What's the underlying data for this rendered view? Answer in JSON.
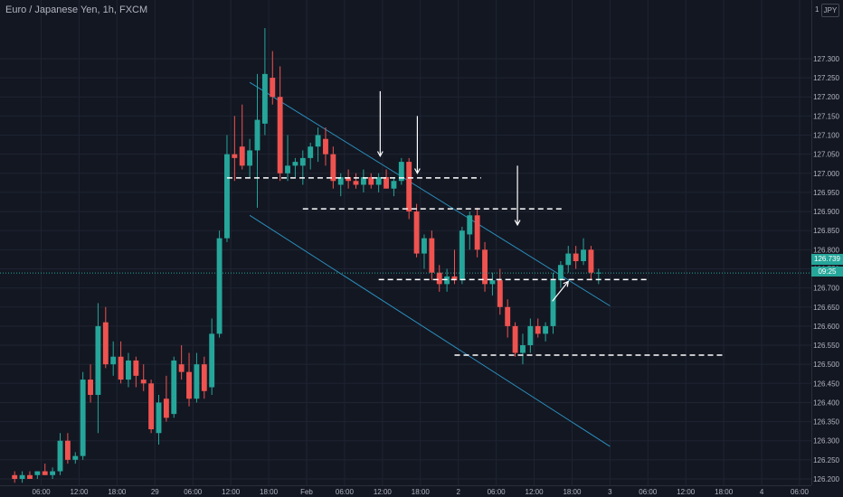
{
  "header": {
    "symbol_title": "Euro / Japanese Yen, 1h, FXCM",
    "currency_badge": "JPY",
    "axis_top_label": "1"
  },
  "price_axis": {
    "last_price": "126.739",
    "countdown": "09:25"
  },
  "colors": {
    "background": "#131722",
    "bull": "#26a69a",
    "bear": "#ef5350",
    "grid": "#1f2433",
    "text": "#b2b5be",
    "channel": "#2a8fbd",
    "annotation": "#ffffff",
    "last_price": "#26a69a"
  },
  "chart_data": {
    "type": "candlestick",
    "ylim": [
      126.2,
      127.43
    ],
    "xlim": [
      0,
      104
    ],
    "grid": true,
    "y_ticks": [
      "127.300",
      "127.250",
      "127.200",
      "127.150",
      "127.100",
      "127.050",
      "127.000",
      "126.950",
      "126.900",
      "126.850",
      "126.800",
      "126.750",
      "126.700",
      "126.650",
      "126.600",
      "126.550",
      "126.500",
      "126.450",
      "126.400",
      "126.350",
      "126.300",
      "126.250",
      "126.200"
    ],
    "x_ticks": [
      {
        "label": "06:00",
        "x": 4
      },
      {
        "label": "12:00",
        "x": 9
      },
      {
        "label": "18:00",
        "x": 14
      },
      {
        "label": "29",
        "x": 19
      },
      {
        "label": "06:00",
        "x": 24
      },
      {
        "label": "12:00",
        "x": 29
      },
      {
        "label": "18:00",
        "x": 34
      },
      {
        "label": "Feb",
        "x": 39
      },
      {
        "label": "06:00",
        "x": 44
      },
      {
        "label": "12:00",
        "x": 49
      },
      {
        "label": "18:00",
        "x": 54
      },
      {
        "label": "2",
        "x": 59
      },
      {
        "label": "06:00",
        "x": 64
      },
      {
        "label": "12:00",
        "x": 69
      },
      {
        "label": "18:00",
        "x": 74
      },
      {
        "label": "3",
        "x": 79
      },
      {
        "label": "06:00",
        "x": 84
      },
      {
        "label": "12:00",
        "x": 89
      },
      {
        "label": "18:00",
        "x": 94
      },
      {
        "label": "4",
        "x": 99
      },
      {
        "label": "06:00",
        "x": 104
      }
    ],
    "candles": [
      [
        126.21,
        126.22,
        126.19,
        126.2
      ],
      [
        126.2,
        126.22,
        126.19,
        126.21
      ],
      [
        126.21,
        126.22,
        126.2,
        126.2
      ],
      [
        126.21,
        126.22,
        126.2,
        126.22
      ],
      [
        126.22,
        126.24,
        126.21,
        126.21
      ],
      [
        126.21,
        126.23,
        126.2,
        126.22
      ],
      [
        126.22,
        126.32,
        126.21,
        126.3
      ],
      [
        126.3,
        126.32,
        126.24,
        126.25
      ],
      [
        126.25,
        126.27,
        126.24,
        126.26
      ],
      [
        126.26,
        126.48,
        126.25,
        126.46
      ],
      [
        126.46,
        126.5,
        126.4,
        126.42
      ],
      [
        126.42,
        126.66,
        126.32,
        126.6
      ],
      [
        126.61,
        126.65,
        126.49,
        126.5
      ],
      [
        126.5,
        126.56,
        126.47,
        126.52
      ],
      [
        126.52,
        126.56,
        126.45,
        126.46
      ],
      [
        126.46,
        126.53,
        126.44,
        126.51
      ],
      [
        126.51,
        126.52,
        126.44,
        126.47
      ],
      [
        126.46,
        126.5,
        126.43,
        126.45
      ],
      [
        126.45,
        126.46,
        126.32,
        126.33
      ],
      [
        126.32,
        126.42,
        126.29,
        126.4
      ],
      [
        126.41,
        126.47,
        126.35,
        126.36
      ],
      [
        126.37,
        126.52,
        126.36,
        126.51
      ],
      [
        126.5,
        126.55,
        126.46,
        126.48
      ],
      [
        126.48,
        126.53,
        126.39,
        126.41
      ],
      [
        126.41,
        126.53,
        126.4,
        126.5
      ],
      [
        126.5,
        126.52,
        126.41,
        126.43
      ],
      [
        126.44,
        126.62,
        126.42,
        126.58
      ],
      [
        126.58,
        126.85,
        126.57,
        126.83
      ],
      [
        126.83,
        127.1,
        126.82,
        127.05
      ],
      [
        127.05,
        127.15,
        126.98,
        127.04
      ],
      [
        127.07,
        127.18,
        127.01,
        127.02
      ],
      [
        127.02,
        127.09,
        126.99,
        127.06
      ],
      [
        127.06,
        127.26,
        126.91,
        127.14
      ],
      [
        127.13,
        127.38,
        127.1,
        127.26
      ],
      [
        127.25,
        127.32,
        127.18,
        127.2
      ],
      [
        127.2,
        127.28,
        126.98,
        127.0
      ],
      [
        127.0,
        127.1,
        126.98,
        127.02
      ],
      [
        127.02,
        127.04,
        126.99,
        127.03
      ],
      [
        127.02,
        127.06,
        126.97,
        127.04
      ],
      [
        127.04,
        127.08,
        127.01,
        127.07
      ],
      [
        127.07,
        127.12,
        127.03,
        127.1
      ],
      [
        127.09,
        127.12,
        127.02,
        127.05
      ],
      [
        127.05,
        127.07,
        126.96,
        126.98
      ],
      [
        126.97,
        127.0,
        126.94,
        126.99
      ],
      [
        126.99,
        127.01,
        126.96,
        126.98
      ],
      [
        126.98,
        127.0,
        126.96,
        126.97
      ],
      [
        126.97,
        127.01,
        126.95,
        126.99
      ],
      [
        126.99,
        127.0,
        126.96,
        126.97
      ],
      [
        126.97,
        127.0,
        126.95,
        126.99
      ],
      [
        126.99,
        127.01,
        126.96,
        126.96
      ],
      [
        126.96,
        126.99,
        126.94,
        126.98
      ],
      [
        126.98,
        127.04,
        126.97,
        127.03
      ],
      [
        127.03,
        127.04,
        126.88,
        126.9
      ],
      [
        126.9,
        126.92,
        126.78,
        126.79
      ],
      [
        126.79,
        126.84,
        126.75,
        126.83
      ],
      [
        126.83,
        126.85,
        126.72,
        126.74
      ],
      [
        126.74,
        126.76,
        126.69,
        126.71
      ],
      [
        126.71,
        126.75,
        126.69,
        126.73
      ],
      [
        126.73,
        126.8,
        126.71,
        126.72
      ],
      [
        126.72,
        126.86,
        126.71,
        126.85
      ],
      [
        126.84,
        126.9,
        126.8,
        126.89
      ],
      [
        126.89,
        126.91,
        126.78,
        126.8
      ],
      [
        126.8,
        126.82,
        126.69,
        126.71
      ],
      [
        126.71,
        126.74,
        126.68,
        126.72
      ],
      [
        126.72,
        126.75,
        126.63,
        126.65
      ],
      [
        126.65,
        126.67,
        126.57,
        126.6
      ],
      [
        126.6,
        126.61,
        126.52,
        126.53
      ],
      [
        126.53,
        126.58,
        126.5,
        126.55
      ],
      [
        126.55,
        126.62,
        126.53,
        126.6
      ],
      [
        126.6,
        126.62,
        126.57,
        126.58
      ],
      [
        126.58,
        126.61,
        126.56,
        126.6
      ],
      [
        126.6,
        126.74,
        126.58,
        126.72
      ],
      [
        126.72,
        126.77,
        126.7,
        126.76
      ],
      [
        126.76,
        126.81,
        126.74,
        126.79
      ],
      [
        126.79,
        126.81,
        126.75,
        126.77
      ],
      [
        126.77,
        126.83,
        126.76,
        126.8
      ],
      [
        126.8,
        126.81,
        126.72,
        126.74
      ],
      [
        126.74,
        126.75,
        126.71,
        126.74
      ]
    ],
    "trend_lines": [
      {
        "x1": 31.5,
        "y1": 127.238,
        "x2": 79,
        "y2": 126.653
      },
      {
        "x1": 31.5,
        "y1": 126.89,
        "x2": 79,
        "y2": 126.285
      }
    ],
    "horizontal_levels": [
      {
        "x1": 28.5,
        "x2": 62,
        "y": 126.988
      },
      {
        "x1": 38.5,
        "x2": 73,
        "y": 126.907
      },
      {
        "x1": 48.5,
        "x2": 84,
        "y": 126.722
      },
      {
        "x1": 58.5,
        "x2": 94,
        "y": 126.524
      }
    ],
    "arrows": [
      {
        "x1": 48.7,
        "y1": 127.215,
        "x2": 48.7,
        "y2": 127.045
      },
      {
        "x1": 53.6,
        "y1": 127.15,
        "x2": 53.6,
        "y2": 127.0
      },
      {
        "x1": 66.8,
        "y1": 127.02,
        "x2": 66.8,
        "y2": 126.865
      },
      {
        "x1": 71.4,
        "y1": 126.665,
        "x2": 73.5,
        "y2": 126.717
      }
    ],
    "last_price": 126.739
  }
}
